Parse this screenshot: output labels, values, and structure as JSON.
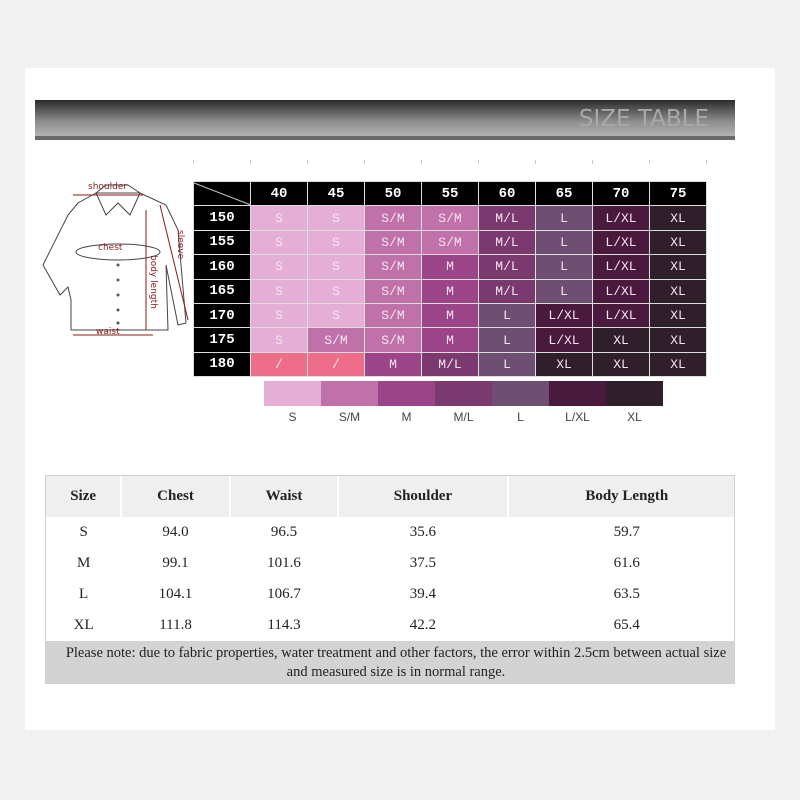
{
  "banner": {
    "title": "SIZE TABLE"
  },
  "diagram": {
    "labels": {
      "shoulder": "shoulder",
      "chest": "chest",
      "sleeve": "sleeve",
      "body_length": "body length",
      "waist": "waist"
    }
  },
  "grid": {
    "columns": [
      "40",
      "45",
      "50",
      "55",
      "60",
      "65",
      "70",
      "75"
    ],
    "rows": [
      {
        "height": "150",
        "cells": [
          "S",
          "S",
          "S/M",
          "S/M",
          "M/L",
          "L",
          "L/XL",
          "XL"
        ]
      },
      {
        "height": "155",
        "cells": [
          "S",
          "S",
          "S/M",
          "S/M",
          "M/L",
          "L",
          "L/XL",
          "XL"
        ]
      },
      {
        "height": "160",
        "cells": [
          "S",
          "S",
          "S/M",
          "M",
          "M/L",
          "L",
          "L/XL",
          "XL"
        ]
      },
      {
        "height": "165",
        "cells": [
          "S",
          "S",
          "S/M",
          "M",
          "M/L",
          "L",
          "L/XL",
          "XL"
        ]
      },
      {
        "height": "170",
        "cells": [
          "S",
          "S",
          "S/M",
          "M",
          "L",
          "L/XL",
          "L/XL",
          "XL"
        ]
      },
      {
        "height": "175",
        "cells": [
          "S",
          "S/M",
          "S/M",
          "M",
          "L",
          "L/XL",
          "XL",
          "XL"
        ]
      },
      {
        "height": "180",
        "cells": [
          "/",
          "/",
          "M",
          "M/L",
          "L",
          "XL",
          "XL",
          "XL"
        ]
      }
    ]
  },
  "colors": {
    "S": "#e4aed6",
    "S/M": "#c171a9",
    "M": "#9b4488",
    "M/L": "#7b3a6f",
    "L": "#6e4f73",
    "L/XL": "#4a193e",
    "XL": "#2e1f2a",
    "/": "#ee6e8a"
  },
  "legend": [
    "S",
    "S/M",
    "M",
    "M/L",
    "L",
    "L/XL",
    "XL"
  ],
  "measurements": {
    "headers": [
      "Size",
      "Chest",
      "Waist",
      "Shoulder",
      "Body Length"
    ],
    "rows": [
      [
        "S",
        "94.0",
        "96.5",
        "35.6",
        "59.7"
      ],
      [
        "M",
        "99.1",
        "101.6",
        "37.5",
        "61.6"
      ],
      [
        "L",
        "104.1",
        "106.7",
        "39.4",
        "63.5"
      ],
      [
        "XL",
        "111.8",
        "114.3",
        "42.2",
        "65.4"
      ]
    ],
    "note_line1": "Please note: due to fabric properties, water treatment and other factors, the error within 2.5cm between actual size",
    "note_line2": "and measured size is in normal range."
  }
}
